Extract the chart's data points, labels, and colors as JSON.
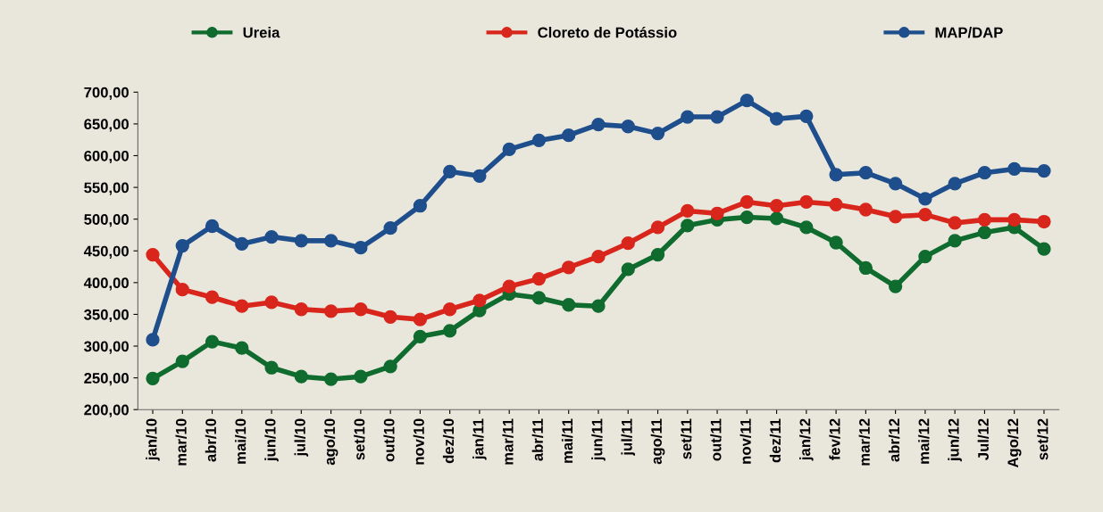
{
  "chart_data": {
    "type": "line",
    "categories": [
      "jan/10",
      "mar/10",
      "abr/10",
      "mai/10",
      "jun/10",
      "jul/10",
      "ago/10",
      "set/10",
      "out/10",
      "nov/10",
      "dez/10",
      "jan/11",
      "mar/11",
      "abr/11",
      "mai/11",
      "jun/11",
      "jul/11",
      "ago/11",
      "set/11",
      "out/11",
      "nov/11",
      "dez/11",
      "jan/12",
      "fev/12",
      "mar/12",
      "abr/12",
      "mai/12",
      "jun/12",
      "Jul/12",
      "Ago/12",
      "set/12"
    ],
    "series": [
      {
        "name": "Ureia",
        "color": "#0f6b2e",
        "values": [
          249,
          276,
          307,
          297,
          266,
          252,
          248,
          252,
          268,
          315,
          324,
          356,
          382,
          376,
          365,
          363,
          421,
          444,
          490,
          499,
          503,
          501,
          487,
          463,
          423,
          394,
          441,
          466,
          479,
          487,
          453
        ]
      },
      {
        "name": "Cloreto de Potássio",
        "color": "#d9261c",
        "values": [
          444,
          389,
          377,
          363,
          369,
          358,
          355,
          358,
          346,
          342,
          358,
          372,
          394,
          406,
          424,
          441,
          462,
          487,
          513,
          509,
          527,
          521,
          527,
          523,
          515,
          504,
          507,
          494,
          499,
          499,
          496
        ]
      },
      {
        "name": "MAP/DAP",
        "color": "#1f4e8c",
        "values": [
          310,
          458,
          489,
          461,
          472,
          466,
          466,
          455,
          486,
          521,
          575,
          568,
          610,
          624,
          632,
          649,
          646,
          635,
          661,
          661,
          687,
          658,
          662,
          570,
          573,
          556,
          532,
          556,
          573,
          579,
          576
        ]
      }
    ],
    "ylim": [
      200,
      700
    ],
    "yticks": [
      {
        "value": 200,
        "label": "200,00"
      },
      {
        "value": 250,
        "label": "250,00"
      },
      {
        "value": 300,
        "label": "300,00"
      },
      {
        "value": 350,
        "label": "350,00"
      },
      {
        "value": 400,
        "label": "400,00"
      },
      {
        "value": 450,
        "label": "450,00"
      },
      {
        "value": 500,
        "label": "500,00"
      },
      {
        "value": 550,
        "label": "550,00"
      },
      {
        "value": 600,
        "label": "600,00"
      },
      {
        "value": 650,
        "label": "650,00"
      },
      {
        "value": 700,
        "label": "700,00"
      }
    ],
    "grid": false,
    "legend": "top",
    "marker": "circle",
    "line_style": "solid"
  }
}
